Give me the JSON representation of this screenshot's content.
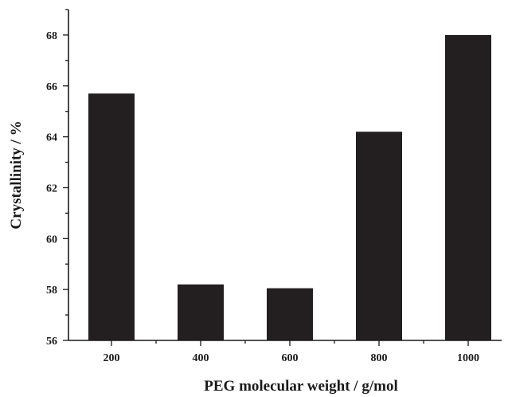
{
  "chart_data": {
    "type": "bar",
    "title": "",
    "xlabel": "PEG molecular weight / g/mol",
    "ylabel": "Crystallinity / %",
    "categories": [
      "200",
      "400",
      "600",
      "800",
      "1000"
    ],
    "values": [
      65.7,
      58.2,
      58.05,
      64.2,
      68.0
    ],
    "ylim": [
      56,
      69
    ],
    "yticks": [
      "56",
      "58",
      "60",
      "62",
      "64",
      "66",
      "68"
    ],
    "grid": false,
    "legend": "none",
    "bar_color": "#231f20"
  }
}
